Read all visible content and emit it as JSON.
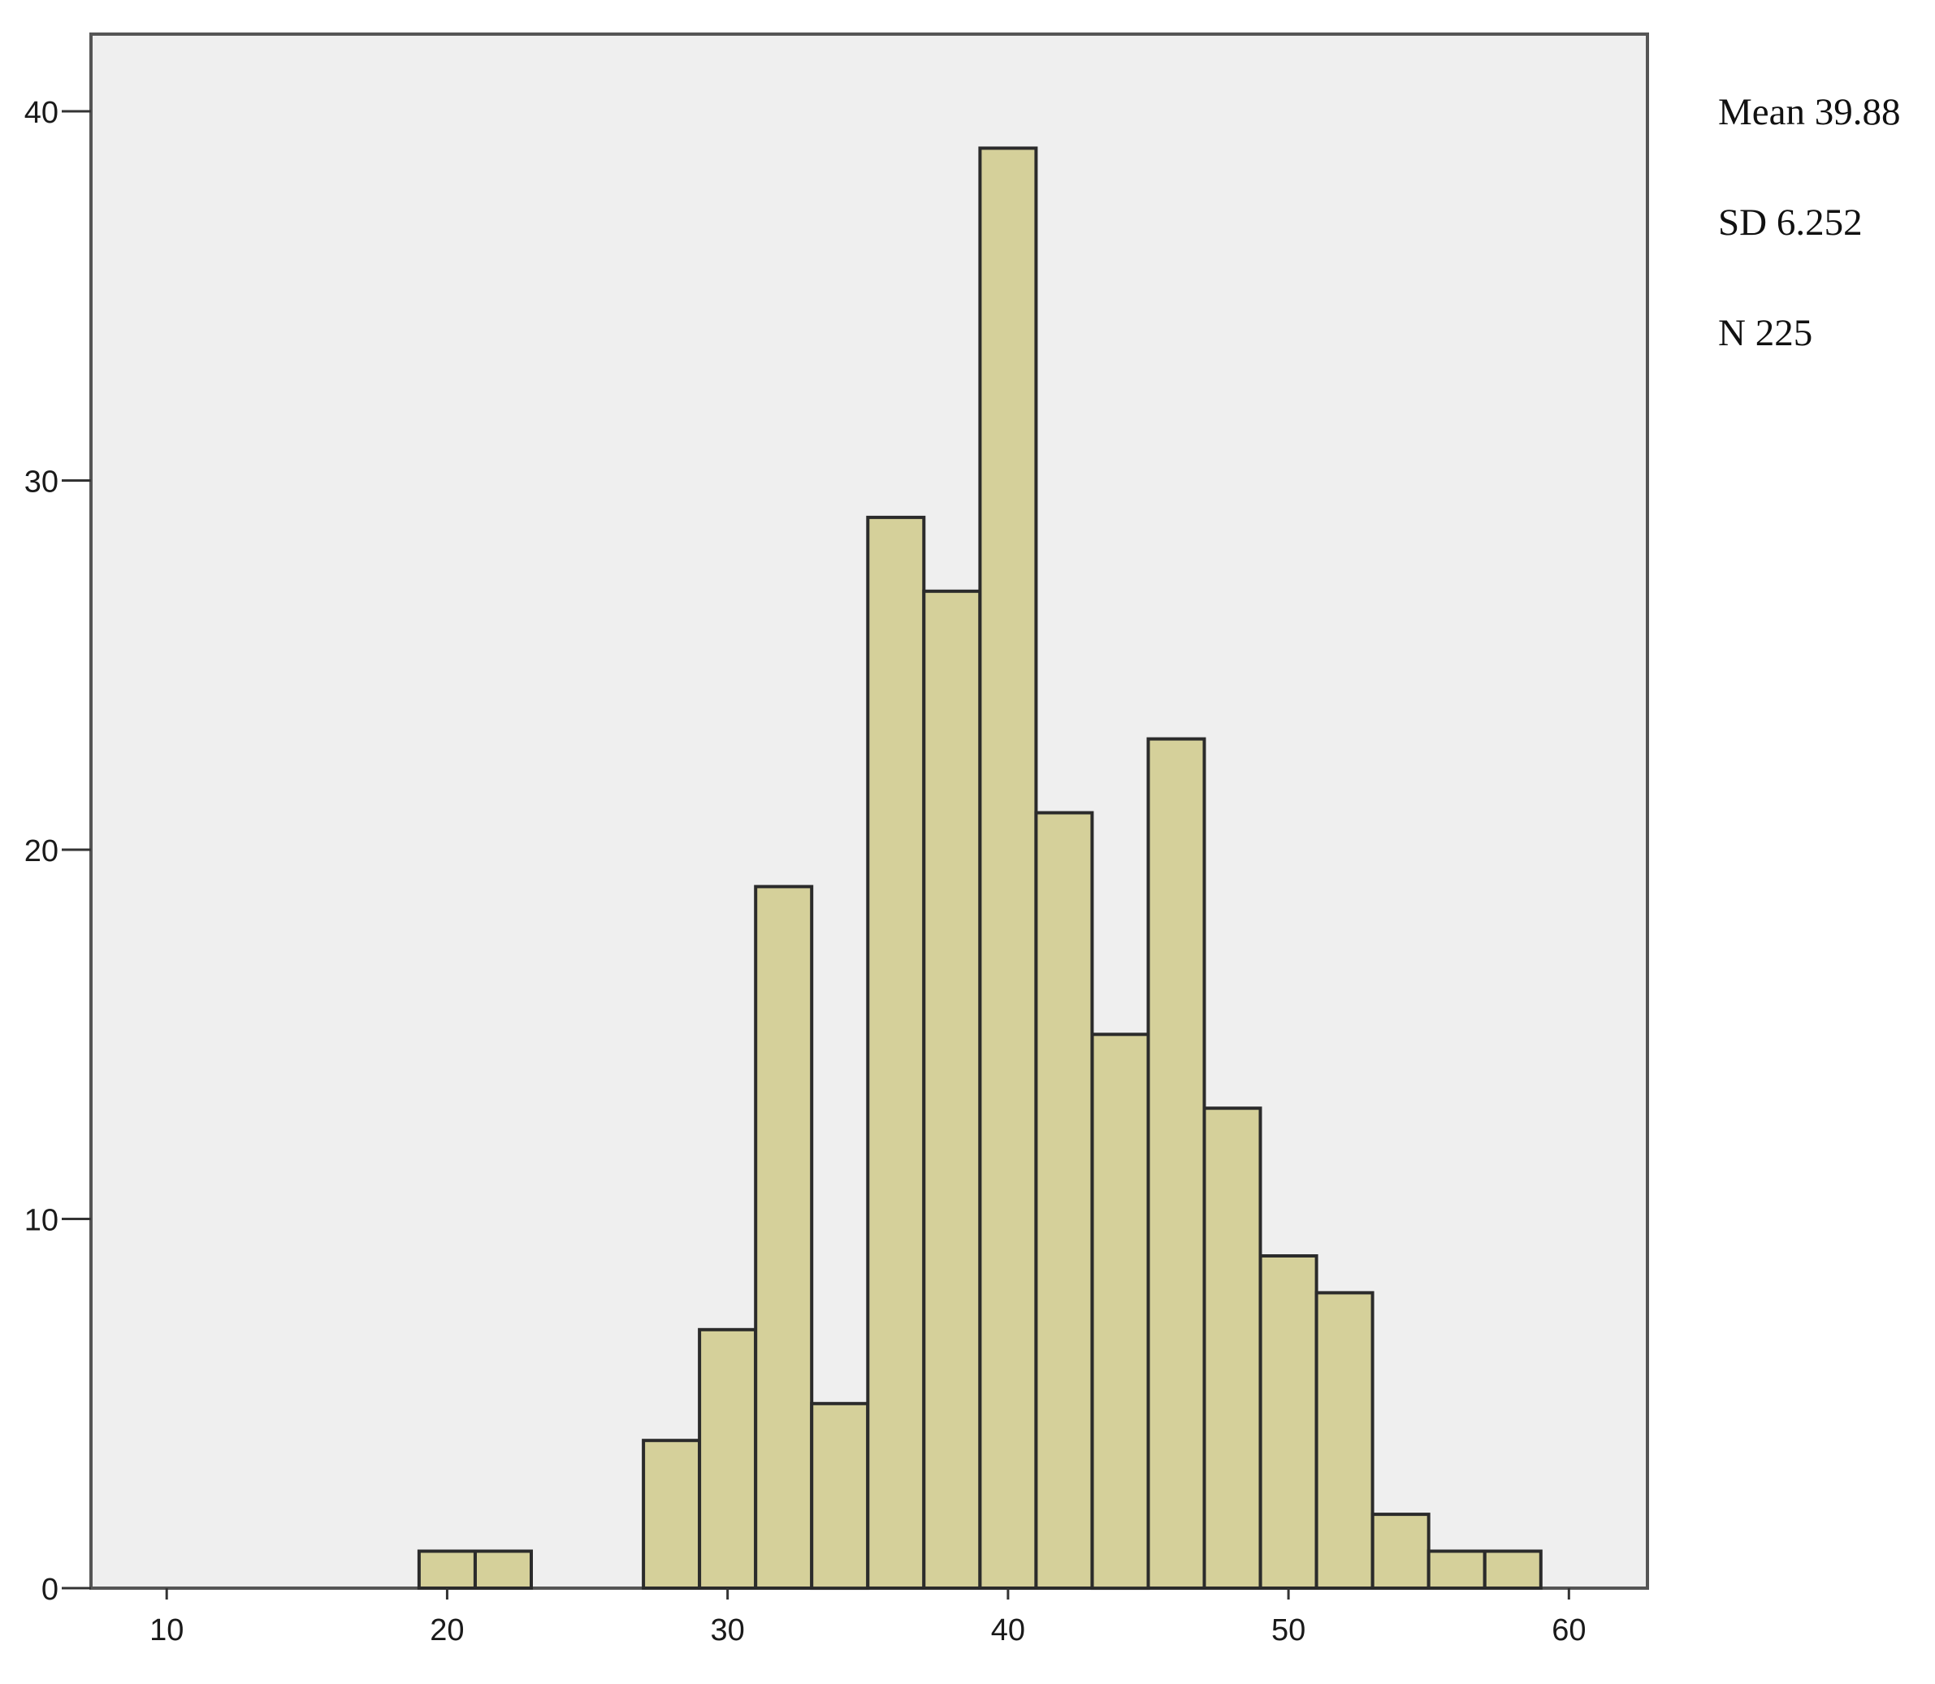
{
  "chart_data": {
    "type": "bar",
    "subtype": "histogram",
    "bin_width": 2,
    "bins": [
      {
        "start": 19,
        "end": 21,
        "count": 1
      },
      {
        "start": 21,
        "end": 23,
        "count": 1
      },
      {
        "start": 27,
        "end": 29,
        "count": 4
      },
      {
        "start": 29,
        "end": 31,
        "count": 7
      },
      {
        "start": 31,
        "end": 33,
        "count": 19
      },
      {
        "start": 33,
        "end": 35,
        "count": 5
      },
      {
        "start": 35,
        "end": 37,
        "count": 29
      },
      {
        "start": 37,
        "end": 39,
        "count": 27
      },
      {
        "start": 39,
        "end": 41,
        "count": 39
      },
      {
        "start": 41,
        "end": 43,
        "count": 21
      },
      {
        "start": 43,
        "end": 45,
        "count": 15
      },
      {
        "start": 45,
        "end": 47,
        "count": 23
      },
      {
        "start": 47,
        "end": 49,
        "count": 13
      },
      {
        "start": 49,
        "end": 51,
        "count": 9
      },
      {
        "start": 51,
        "end": 53,
        "count": 8
      },
      {
        "start": 53,
        "end": 55,
        "count": 2
      },
      {
        "start": 55,
        "end": 57,
        "count": 1
      },
      {
        "start": 57,
        "end": 59,
        "count": 1
      }
    ],
    "xlim": [
      7.3,
      62.8
    ],
    "ylim": [
      0,
      42
    ],
    "xticks": [
      "10",
      "20",
      "30",
      "40",
      "50",
      "60"
    ],
    "yticks": [
      "0",
      "10",
      "20",
      "30",
      "40"
    ],
    "title": "",
    "xlabel": "",
    "ylabel": "",
    "grid": false,
    "colors": {
      "bar_fill": "#d5d09a",
      "bar_stroke": "#2b2b2b",
      "plot_background": "#efefef",
      "frame": "#555555"
    },
    "stats": {
      "mean": "Mean 39.88",
      "sd": "SD 6.252",
      "n": "N 225"
    }
  }
}
